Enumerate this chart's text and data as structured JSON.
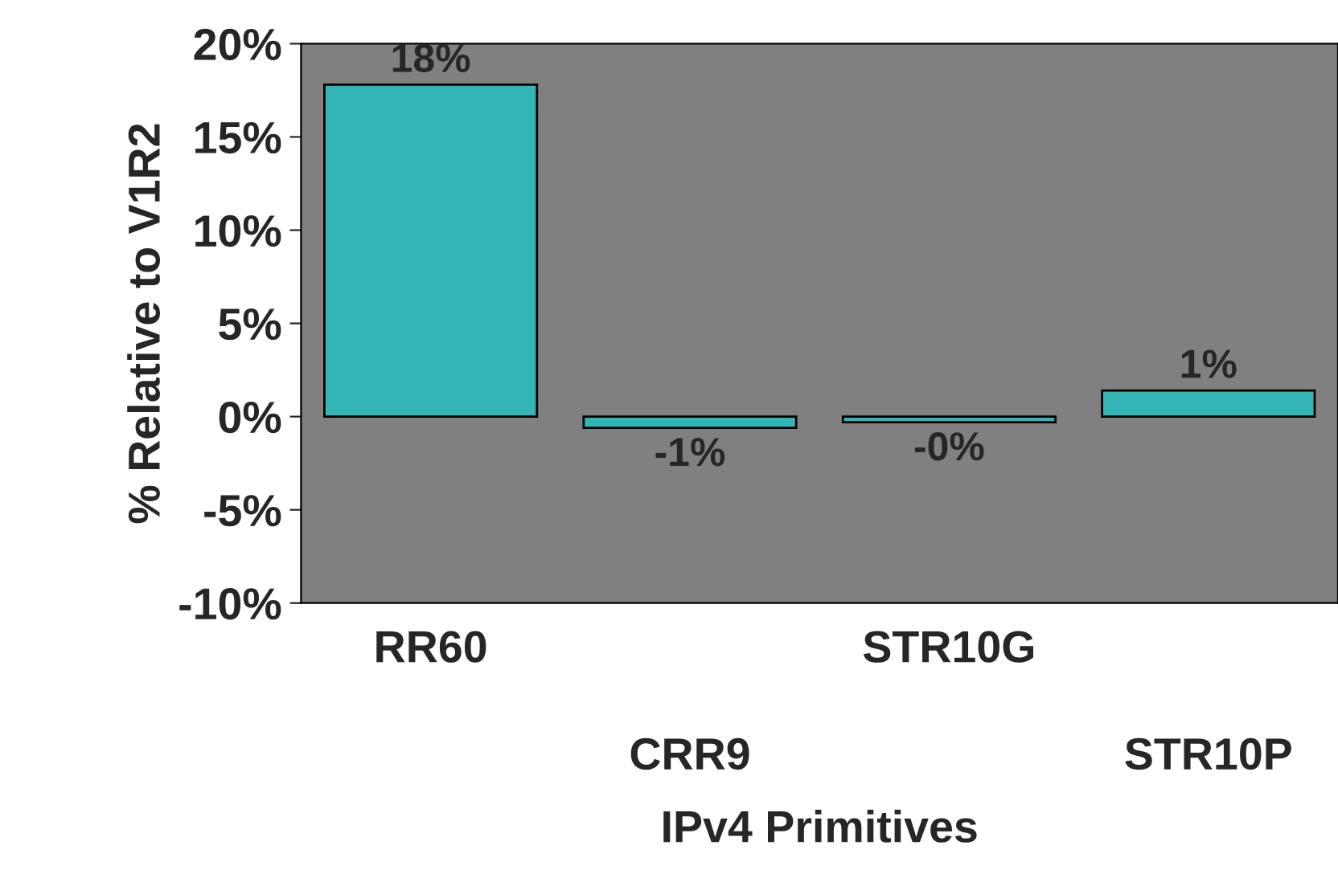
{
  "chart_data": {
    "type": "bar",
    "xlabel": "IPv4 Primitives",
    "ylabel": "% Relative to V1R2",
    "categories": [
      "RR60",
      "CRR9",
      "STR10G",
      "STR10P"
    ],
    "values": [
      17.8,
      -0.6,
      -0.3,
      1.4
    ],
    "value_labels": [
      "18%",
      "-1%",
      "-0%",
      "1%"
    ],
    "color": "#33b5b5",
    "ylim": [
      -10,
      20
    ],
    "yticks": [
      {
        "value": -10,
        "label": "-10%"
      },
      {
        "value": -5,
        "label": "-5%"
      },
      {
        "value": 0,
        "label": "0%"
      },
      {
        "value": 5,
        "label": "5%"
      },
      {
        "value": 10,
        "label": "10%"
      },
      {
        "value": 15,
        "label": "15%"
      },
      {
        "value": 20,
        "label": "20%"
      }
    ],
    "grid": false,
    "legend": false
  }
}
